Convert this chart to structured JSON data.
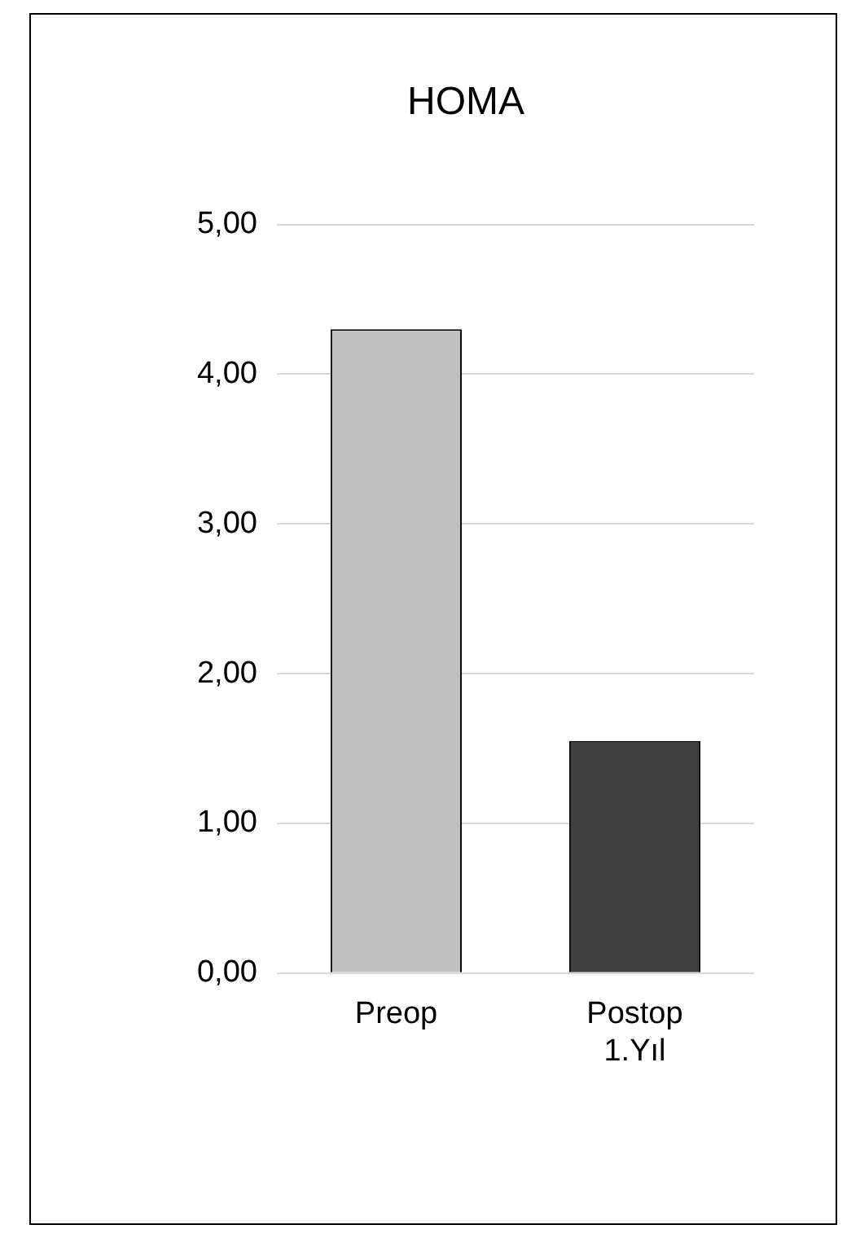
{
  "chart_data": {
    "type": "bar",
    "title": "HOMA",
    "categories": [
      "Preop",
      "Postop 1.Yıl"
    ],
    "values": [
      4.3,
      1.55
    ],
    "colors": [
      "#c0c0c0",
      "#404040"
    ],
    "ylim": [
      0,
      5
    ],
    "yticks": [
      {
        "value": 0,
        "label": "0,00"
      },
      {
        "value": 1,
        "label": "1,00"
      },
      {
        "value": 2,
        "label": "2,00"
      },
      {
        "value": 3,
        "label": "3,00"
      },
      {
        "value": 4,
        "label": "4,00"
      },
      {
        "value": 5,
        "label": "5,00"
      }
    ],
    "grid": "y",
    "legend": false
  }
}
